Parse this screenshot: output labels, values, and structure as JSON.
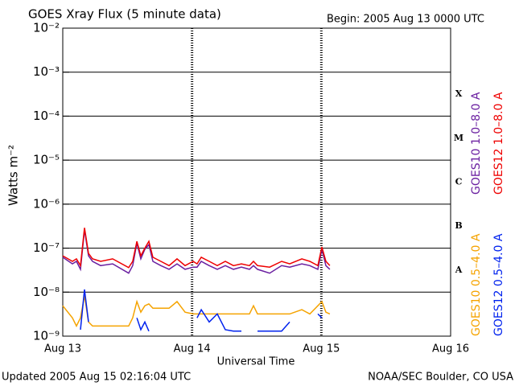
{
  "chart_data": {
    "type": "line",
    "title": "GOES Xray Flux (5 minute data)",
    "subtitle": "Begin:  2005 Aug 13 0000 UTC",
    "xlabel": "Universal Time",
    "ylabel": "Watts m⁻²",
    "footer_left": "Updated 2005 Aug 15 02:16:04 UTC",
    "footer_right": "NOAA/SEC Boulder, CO USA",
    "flare_classes": [
      "X",
      "M",
      "C",
      "B",
      "A"
    ],
    "y_scale": "log",
    "grid": true,
    "xlim": [
      0,
      3
    ],
    "xticks": [
      {
        "value": 0,
        "label": "Aug 13"
      },
      {
        "value": 1,
        "label": "Aug 14"
      },
      {
        "value": 2,
        "label": "Aug 15"
      },
      {
        "value": 3,
        "label": "Aug 16"
      }
    ],
    "ylim": [
      1e-09,
      0.01
    ],
    "yticks": [
      {
        "value": 1e-09,
        "label": "10⁻⁹"
      },
      {
        "value": 1e-08,
        "label": "10⁻⁸"
      },
      {
        "value": 1e-07,
        "label": "10⁻⁷"
      },
      {
        "value": 1e-06,
        "label": "10⁻⁶"
      },
      {
        "value": 1e-05,
        "label": "10⁻⁵"
      },
      {
        "value": 0.0001,
        "label": "10⁻⁴"
      },
      {
        "value": 0.001,
        "label": "10⁻³"
      },
      {
        "value": 0.01,
        "label": "10⁻²"
      }
    ],
    "x": [
      0,
      0.075,
      0.106,
      0.137,
      0.168,
      0.199,
      0.23,
      0.293,
      0.386,
      0.51,
      0.541,
      0.573,
      0.604,
      0.635,
      0.666,
      0.697,
      0.759,
      0.822,
      0.884,
      0.946,
      1.008,
      1.039,
      1.071,
      1.133,
      1.195,
      1.257,
      1.32,
      1.382,
      1.444,
      1.475,
      1.506,
      1.6,
      1.693,
      1.755,
      1.849,
      1.911,
      1.973,
      2.004,
      2.035,
      2.066
    ],
    "series": [
      {
        "name": "GOES10 1.0–8.0 A",
        "color": "#6a1fa0",
        "legend_column": 0,
        "legend_group": 0,
        "values": [
          6.2e-08,
          4.4e-08,
          5e-08,
          3.3e-08,
          2.6e-07,
          6.7e-08,
          5e-08,
          4e-08,
          4.4e-08,
          2.7e-08,
          4e-08,
          1.3e-07,
          5.7e-08,
          9.4e-08,
          1.2e-07,
          5e-08,
          4e-08,
          3.3e-08,
          4.4e-08,
          3.3e-08,
          3.7e-08,
          3.7e-08,
          5e-08,
          4e-08,
          3.3e-08,
          4e-08,
          3.3e-08,
          3.7e-08,
          3.3e-08,
          4e-08,
          3.3e-08,
          2.7e-08,
          4e-08,
          3.7e-08,
          4.4e-08,
          4e-08,
          3.3e-08,
          9.4e-08,
          4e-08,
          3.3e-08
        ]
      },
      {
        "name": "GOES12 1.0–8.0 A",
        "color": "#ee0000",
        "legend_column": 1,
        "legend_group": 0,
        "values": [
          6.7e-08,
          5e-08,
          5.7e-08,
          4e-08,
          2.9e-07,
          7.6e-08,
          5.7e-08,
          5e-08,
          5.7e-08,
          3.6e-08,
          5e-08,
          1.43e-07,
          6.7e-08,
          1e-07,
          1.43e-07,
          6.2e-08,
          5e-08,
          4e-08,
          5.7e-08,
          4e-08,
          5e-08,
          4.4e-08,
          6.2e-08,
          5e-08,
          4e-08,
          5e-08,
          4e-08,
          4.4e-08,
          4e-08,
          5e-08,
          4e-08,
          3.7e-08,
          5e-08,
          4.4e-08,
          5.7e-08,
          5e-08,
          4e-08,
          1.06e-07,
          5e-08,
          4e-08
        ]
      },
      {
        "name": "GOES10 0.5–4.0 A",
        "color": "#f5a300",
        "legend_column": 0,
        "legend_group": 1,
        "values": [
          4.9e-09,
          2.6e-09,
          1.7e-09,
          2.6e-09,
          8.2e-09,
          2.1e-09,
          1.7e-09,
          1.7e-09,
          1.7e-09,
          1.7e-09,
          2.6e-09,
          6.1e-09,
          3.5e-09,
          4.9e-09,
          5.4e-09,
          4.3e-09,
          4.3e-09,
          4.3e-09,
          6.1e-09,
          3.5e-09,
          3.2e-09,
          3.2e-09,
          3.2e-09,
          3.2e-09,
          3.2e-09,
          3.2e-09,
          3.2e-09,
          3.2e-09,
          3.2e-09,
          4.9e-09,
          3.2e-09,
          3.2e-09,
          3.2e-09,
          3.2e-09,
          4e-09,
          3.2e-09,
          4.9e-09,
          6.1e-09,
          3.5e-09,
          3.2e-09
        ]
      },
      {
        "name": "GOES12 0.5–4.0 A",
        "color": "#0022ee",
        "legend_column": 1,
        "legend_group": 1,
        "values": [
          null,
          null,
          null,
          1.4e-09,
          1.15e-08,
          2.1e-09,
          null,
          null,
          null,
          null,
          null,
          2.6e-09,
          1.4e-09,
          2.1e-09,
          1.3e-09,
          null,
          null,
          null,
          null,
          null,
          null,
          2.6e-09,
          4e-09,
          2.1e-09,
          3.2e-09,
          1.4e-09,
          1.3e-09,
          1.3e-09,
          null,
          null,
          1.3e-09,
          1.3e-09,
          1.3e-09,
          2.1e-09,
          null,
          null,
          3.2e-09,
          2.6e-09,
          null,
          null
        ]
      }
    ]
  }
}
